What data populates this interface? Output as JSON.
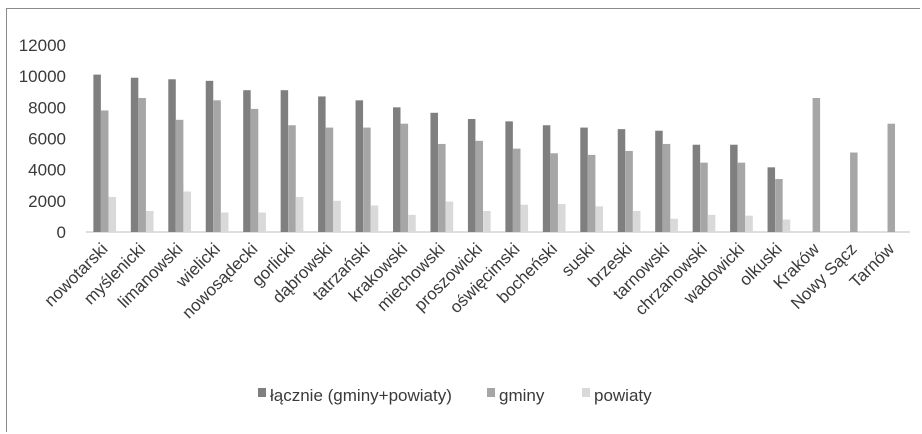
{
  "chart_data": {
    "type": "bar",
    "title": "",
    "xlabel": "",
    "ylabel": "",
    "ylim": [
      0,
      12000
    ],
    "yticks": [
      0,
      2000,
      4000,
      6000,
      8000,
      10000,
      12000
    ],
    "ytick_labels": [
      "0",
      "2000",
      "4000",
      "6000",
      "8000",
      "10000",
      "12000"
    ],
    "grid": false,
    "legend_position": "bottom",
    "categories": [
      "nowotarski",
      "myślenicki",
      "limanowski",
      "wielicki",
      "nowosądecki",
      "gorlicki",
      "dąbrowski",
      "tatrzański",
      "krakowski",
      "miechowski",
      "proszowicki",
      "oświęcimski",
      "bocheński",
      "suski",
      "brzeski",
      "tarnowski",
      "chrzanowski",
      "wadowicki",
      "olkuski",
      "Kraków",
      "Nowy Sącz",
      "Tarnów"
    ],
    "series": [
      {
        "name": "łącznie (gminy+powiaty)",
        "color": "#7f7f7f",
        "values": [
          10100,
          9900,
          9800,
          9700,
          9100,
          9100,
          8700,
          8450,
          8000,
          7650,
          7250,
          7100,
          6850,
          6700,
          6600,
          6500,
          5600,
          5600,
          4150,
          null,
          null,
          null
        ]
      },
      {
        "name": "gminy",
        "color": "#a6a6a6",
        "values": [
          7800,
          8600,
          7200,
          8450,
          7900,
          6850,
          6700,
          6700,
          6950,
          5650,
          5850,
          5350,
          5050,
          4950,
          5200,
          5650,
          4450,
          4450,
          3400,
          8600,
          5100,
          6950
        ]
      },
      {
        "name": "powiaty",
        "color": "#d9d9d9",
        "values": [
          2250,
          1350,
          2600,
          1250,
          1250,
          2250,
          2000,
          1700,
          1100,
          1950,
          1350,
          1750,
          1800,
          1650,
          1350,
          850,
          1100,
          1050,
          800,
          null,
          null,
          null
        ]
      }
    ]
  }
}
